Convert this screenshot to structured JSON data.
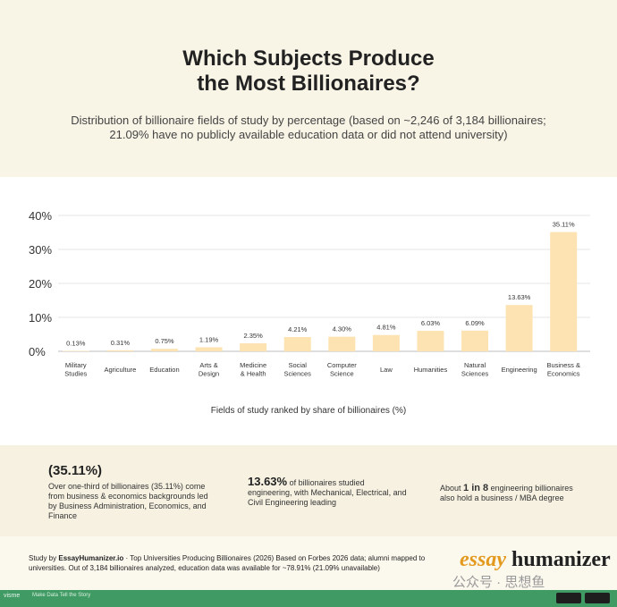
{
  "title_line1": "Which Subjects Produce",
  "title_line2": "the Most Billionaires?",
  "subtitle": "Distribution of billionaire fields of study by percentage (based on ~2,246 of 3,184 billionaires; 21.09% have no publicly available education data or did not attend university)",
  "chart_data": {
    "type": "bar",
    "title": "Which Subjects Produce the Most Billionaires?",
    "xlabel": "Fields of study ranked by share of billionaires (%)",
    "ylabel": "",
    "ylim": [
      0,
      40
    ],
    "yticks": [
      0,
      10,
      20,
      30,
      40
    ],
    "ytick_labels": [
      "0%",
      "10%",
      "20%",
      "30%",
      "40%"
    ],
    "grid": "horizontal",
    "bar_color": "#fde3b2",
    "categories": [
      [
        "Military",
        "Studies"
      ],
      [
        "Agriculture"
      ],
      [
        "Education"
      ],
      [
        "Arts &",
        "Design"
      ],
      [
        "Medicine",
        "& Health"
      ],
      [
        "Social",
        "Sciences"
      ],
      [
        "Computer",
        "Science"
      ],
      [
        "Law"
      ],
      [
        "Humanities"
      ],
      [
        "Natural",
        "Sciences"
      ],
      [
        "Engineering"
      ],
      [
        "Business &",
        "Economics"
      ]
    ],
    "values": [
      0.13,
      0.31,
      0.75,
      1.19,
      2.35,
      4.21,
      4.3,
      4.81,
      6.03,
      6.09,
      13.63,
      35.11
    ],
    "value_labels": [
      "0.13%",
      "0.31%",
      "0.75%",
      "1.19%",
      "2.35%",
      "4.21%",
      "4.30%",
      "4.81%",
      "6.03%",
      "6.09%",
      "13.63%",
      "35.11%"
    ]
  },
  "stats": {
    "stat1_big": "(35.11%)",
    "stat1_lines": [
      "Over one-third of billionaires (35.11%) come",
      "from business & economics backgrounds led",
      "by Business Administration, Economics, and",
      "Finance"
    ],
    "stat2_big": "13.63%",
    "stat2_rest_line1": " of billionaires studied",
    "stat2_lines": [
      "engineering, with Mechanical, Electrical, and",
      "Civil Engineering leading"
    ],
    "stat3_pre": "About ",
    "stat3_bold": "1 in 8",
    "stat3_post": " engineering billionaires",
    "stat3_line2": "also hold a business / MBA degree"
  },
  "footer": {
    "study_by_prefix": "Study by ",
    "study_by_brand": "EssayHumanizer.io",
    "line1_rest": " · Top Universities Producing Billionaires (2026) Based on Forbes 2026 data; alumni mapped to",
    "line2": "universities. Out of 3,184 billionaires analyzed, education data was available for ~78.91% (21.09% unavailable)"
  },
  "logo": {
    "part1": "essay",
    "part2": "humanizer"
  },
  "watermark": "公众号 · 思想鱼",
  "bottom_bar": {
    "brand": "visme",
    "tagline": "Make Data Tell the Story",
    "store1": "App Store",
    "store2": "Google Play"
  }
}
